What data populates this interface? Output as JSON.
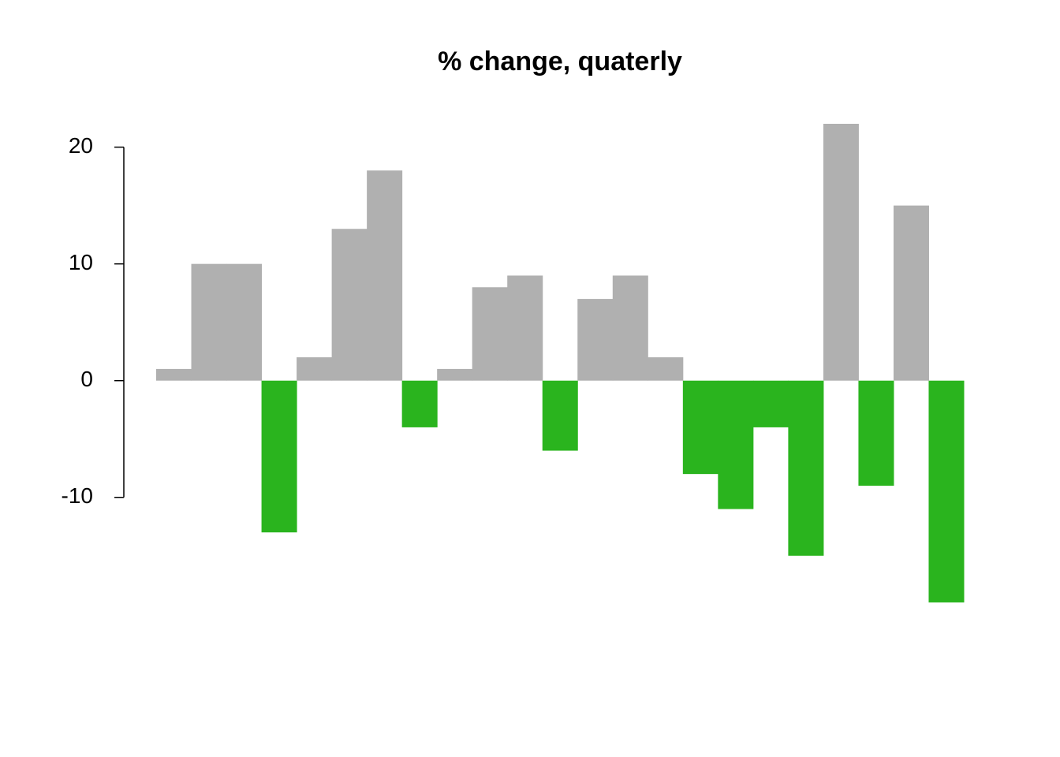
{
  "chart_data": {
    "type": "bar",
    "title": "% change, quaterly",
    "values": [
      1,
      10,
      10,
      -13,
      2,
      13,
      18,
      -4,
      1,
      8,
      9,
      -6,
      7,
      9,
      2,
      -8,
      -11,
      -4,
      -15,
      22,
      -9,
      15,
      -19
    ],
    "color_positive": "#b0b0b0",
    "color_negative": "#2ab41e",
    "ylim": [
      -19,
      22
    ],
    "yticks": [
      -10,
      0,
      10,
      20
    ]
  }
}
